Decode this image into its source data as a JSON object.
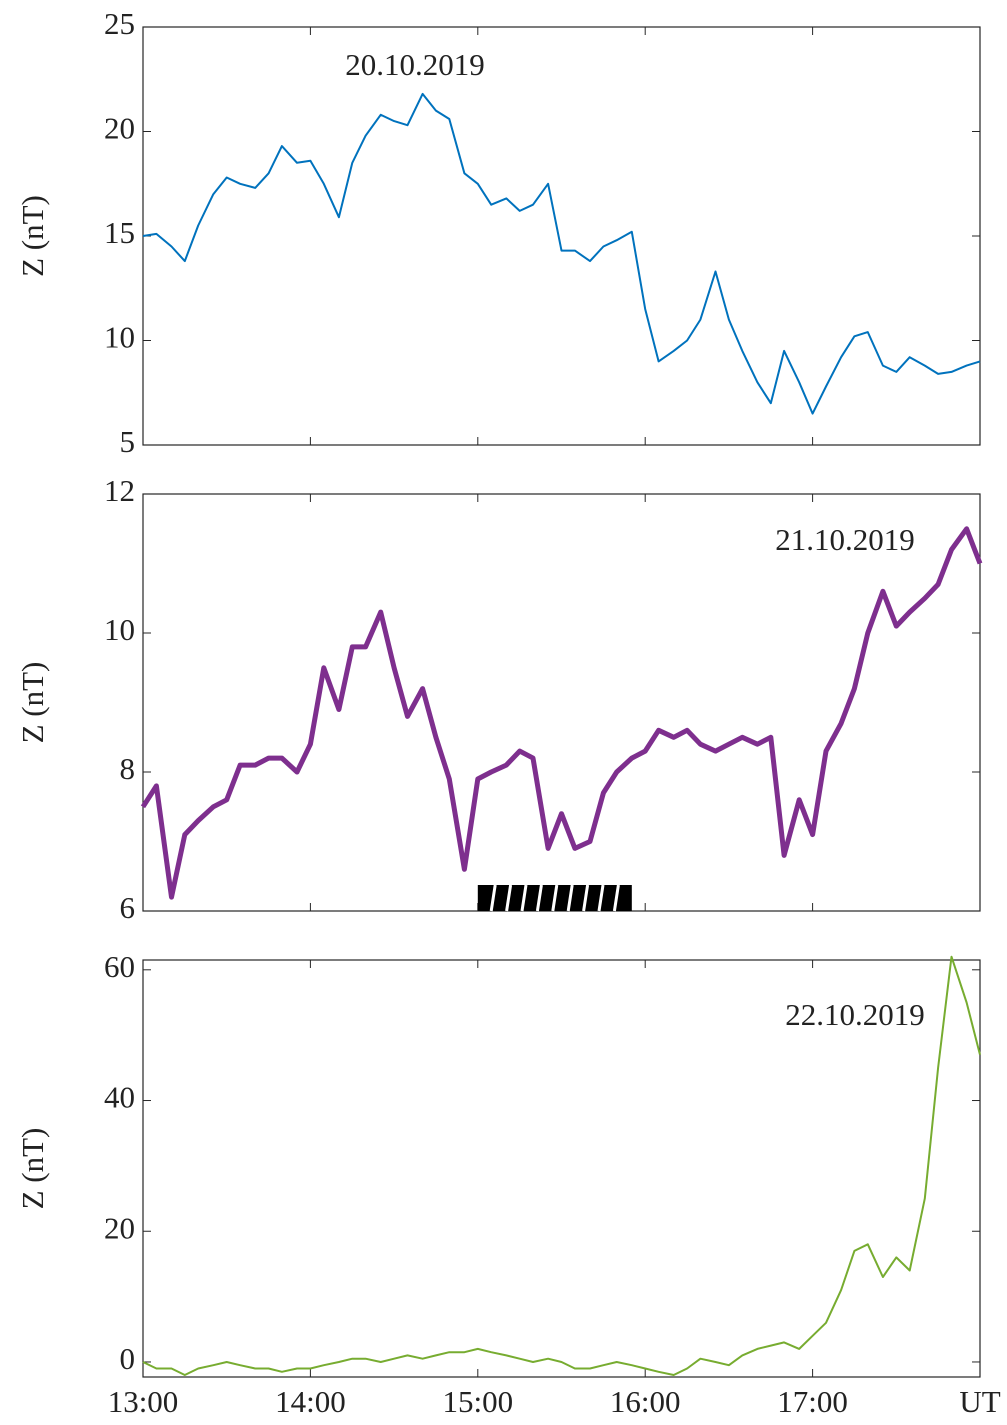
{
  "chart_data": [
    {
      "type": "line",
      "annotation": "20.10.2019",
      "ylabel": "Z (nT)",
      "color": "#0072bd",
      "line_width": 2,
      "x": [
        13,
        13.08,
        13.17,
        13.25,
        13.33,
        13.42,
        13.5,
        13.58,
        13.67,
        13.75,
        13.83,
        13.92,
        14,
        14.08,
        14.17,
        14.25,
        14.33,
        14.42,
        14.5,
        14.58,
        14.67,
        14.75,
        14.83,
        14.92,
        15,
        15.08,
        15.17,
        15.25,
        15.33,
        15.42,
        15.5,
        15.58,
        15.67,
        15.75,
        15.83,
        15.92,
        16,
        16.08,
        16.17,
        16.25,
        16.33,
        16.42,
        16.5,
        16.58,
        16.67,
        16.75,
        16.83,
        16.92,
        17,
        17.08,
        17.17,
        17.25,
        17.33,
        17.42,
        17.5,
        17.58,
        17.67,
        17.75,
        17.83,
        17.92,
        18
      ],
      "values": [
        15.0,
        15.1,
        14.5,
        13.8,
        15.5,
        17.0,
        17.8,
        17.5,
        17.3,
        18.0,
        19.3,
        18.5,
        18.6,
        17.5,
        15.9,
        18.5,
        19.8,
        20.8,
        20.5,
        20.3,
        21.8,
        21.0,
        20.6,
        18.0,
        17.5,
        16.5,
        16.8,
        16.2,
        16.5,
        17.5,
        14.3,
        14.3,
        13.8,
        14.5,
        14.8,
        15.2,
        11.5,
        9.0,
        9.5,
        10.0,
        11.0,
        13.3,
        11.0,
        9.5,
        8.0,
        7.0,
        9.5,
        8.0,
        6.5,
        7.8,
        9.2,
        10.2,
        10.4,
        8.8,
        8.5,
        9.2,
        8.8,
        8.4,
        8.5,
        8.8,
        9.0
      ],
      "xlim": [
        13,
        18
      ],
      "ylim": [
        5,
        25
      ],
      "yticks": [
        5,
        10,
        15,
        20,
        25
      ]
    },
    {
      "type": "line",
      "annotation": "21.10.2019",
      "ylabel": "Z (nT)",
      "color": "#7e2f8e",
      "line_width": 5,
      "x": [
        13,
        13.08,
        13.17,
        13.25,
        13.33,
        13.42,
        13.5,
        13.58,
        13.67,
        13.75,
        13.83,
        13.92,
        14,
        14.08,
        14.17,
        14.25,
        14.33,
        14.42,
        14.5,
        14.58,
        14.67,
        14.75,
        14.83,
        14.92,
        15,
        15.08,
        15.17,
        15.25,
        15.33,
        15.42,
        15.5,
        15.58,
        15.67,
        15.75,
        15.83,
        15.92,
        16,
        16.08,
        16.17,
        16.25,
        16.33,
        16.42,
        16.5,
        16.58,
        16.67,
        16.75,
        16.83,
        16.92,
        17,
        17.08,
        17.17,
        17.25,
        17.33,
        17.42,
        17.5,
        17.58,
        17.67,
        17.75,
        17.83,
        17.92,
        18
      ],
      "values": [
        7.5,
        7.8,
        6.2,
        7.1,
        7.3,
        7.5,
        7.6,
        8.1,
        8.1,
        8.2,
        8.2,
        8.0,
        8.4,
        9.5,
        8.9,
        9.8,
        9.8,
        10.3,
        9.5,
        8.8,
        9.2,
        8.5,
        7.9,
        6.6,
        7.9,
        8.0,
        8.1,
        8.3,
        8.2,
        6.9,
        7.4,
        6.9,
        7.0,
        7.7,
        8.0,
        8.2,
        8.3,
        8.6,
        8.5,
        8.6,
        8.4,
        8.3,
        8.4,
        8.5,
        8.4,
        8.5,
        6.8,
        7.6,
        7.1,
        8.3,
        8.7,
        9.2,
        10.0,
        10.6,
        10.1,
        10.3,
        10.5,
        10.7,
        11.2,
        11.5,
        11.0
      ],
      "highlight_x": [
        15,
        15.92
      ],
      "xlim": [
        13,
        18
      ],
      "ylim": [
        6,
        12
      ],
      "yticks": [
        6,
        8,
        10,
        12
      ]
    },
    {
      "type": "line",
      "annotation": "22.10.2019",
      "ylabel": "Z (nT)",
      "color": "#77ac30",
      "line_width": 2,
      "x": [
        13,
        13.08,
        13.17,
        13.25,
        13.33,
        13.42,
        13.5,
        13.58,
        13.67,
        13.75,
        13.83,
        13.92,
        14,
        14.08,
        14.17,
        14.25,
        14.33,
        14.42,
        14.5,
        14.58,
        14.67,
        14.75,
        14.83,
        14.92,
        15,
        15.08,
        15.17,
        15.25,
        15.33,
        15.42,
        15.5,
        15.58,
        15.67,
        15.75,
        15.83,
        15.92,
        16,
        16.08,
        16.17,
        16.25,
        16.33,
        16.42,
        16.5,
        16.58,
        16.67,
        16.75,
        16.83,
        16.92,
        17,
        17.08,
        17.17,
        17.25,
        17.33,
        17.42,
        17.5,
        17.58,
        17.67,
        17.75,
        17.83,
        17.92,
        18
      ],
      "values": [
        0,
        -1,
        -1,
        -2,
        -1,
        -0.5,
        0,
        -0.5,
        -1,
        -1,
        -1.5,
        -1,
        -1,
        -0.5,
        0,
        0.5,
        0.5,
        0,
        0.5,
        1,
        0.5,
        1,
        1.5,
        1.5,
        2,
        1.5,
        1,
        0.5,
        0,
        0.5,
        0,
        -1,
        -1,
        -0.5,
        0,
        -0.5,
        -1,
        -1.5,
        -2,
        -1,
        0.5,
        0,
        -0.5,
        1,
        2,
        2.5,
        3,
        2,
        4,
        6,
        11,
        17,
        18,
        13,
        16,
        14,
        25,
        45,
        62,
        55,
        47
      ],
      "xlim": [
        13,
        18
      ],
      "ylim": [
        -2.3,
        61.5
      ],
      "yticks": [
        0,
        20,
        40,
        60
      ],
      "xticks": [
        {
          "value": 13,
          "label": "13:00"
        },
        {
          "value": 14,
          "label": "14:00"
        },
        {
          "value": 15,
          "label": "15:00"
        },
        {
          "value": 16,
          "label": "16:00"
        },
        {
          "value": 17,
          "label": "17:00"
        },
        {
          "value": 18,
          "label": "UT"
        }
      ]
    }
  ]
}
